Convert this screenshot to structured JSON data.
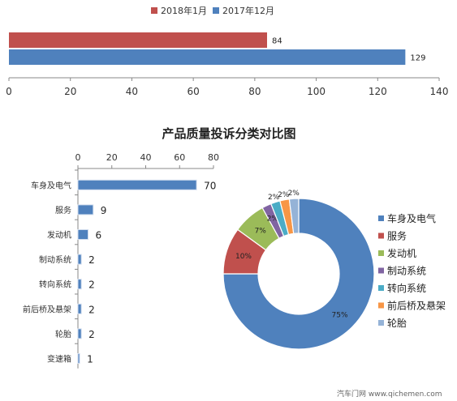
{
  "chart_data": [
    {
      "type": "bar",
      "orientation": "horizontal",
      "title": "",
      "series": [
        {
          "name": "2018年1月",
          "color": "#c0504d",
          "value": 84
        },
        {
          "name": "2017年12月",
          "color": "#4f81bd",
          "value": 129
        }
      ],
      "xlim": [
        0,
        140
      ],
      "xticks": [
        0,
        20,
        40,
        60,
        80,
        100,
        120,
        140
      ],
      "legend_position": "top"
    },
    {
      "type": "bar",
      "orientation": "horizontal",
      "title": "产品质量投诉分类对比图",
      "categories": [
        "车身及电气",
        "服务",
        "发动机",
        "制动系统",
        "转向系统",
        "前后桥及悬架",
        "轮胎",
        "变速箱"
      ],
      "values": [
        70,
        9,
        6,
        2,
        2,
        2,
        2,
        1
      ],
      "xlim": [
        0,
        80
      ],
      "xticks": [
        0,
        20,
        40,
        60,
        80
      ],
      "axis_position": "top",
      "color": "#4f81bd"
    },
    {
      "type": "pie",
      "style": "donut",
      "labels": [
        "车身及电气",
        "服务",
        "发动机",
        "制动系统",
        "转向系统",
        "前后桥及悬架",
        "轮胎"
      ],
      "values": [
        75,
        10,
        7,
        2,
        2,
        2,
        2
      ],
      "value_labels": [
        "75%",
        "10%",
        "7%",
        "2%",
        "2%",
        "2%",
        "2%"
      ],
      "colors": [
        "#4f81bd",
        "#c0504d",
        "#9bbb59",
        "#8064a2",
        "#4bacc6",
        "#f79646",
        "#95b3d7"
      ],
      "legend_position": "right"
    }
  ],
  "watermark": "汽车门网 www.qichemen.com"
}
